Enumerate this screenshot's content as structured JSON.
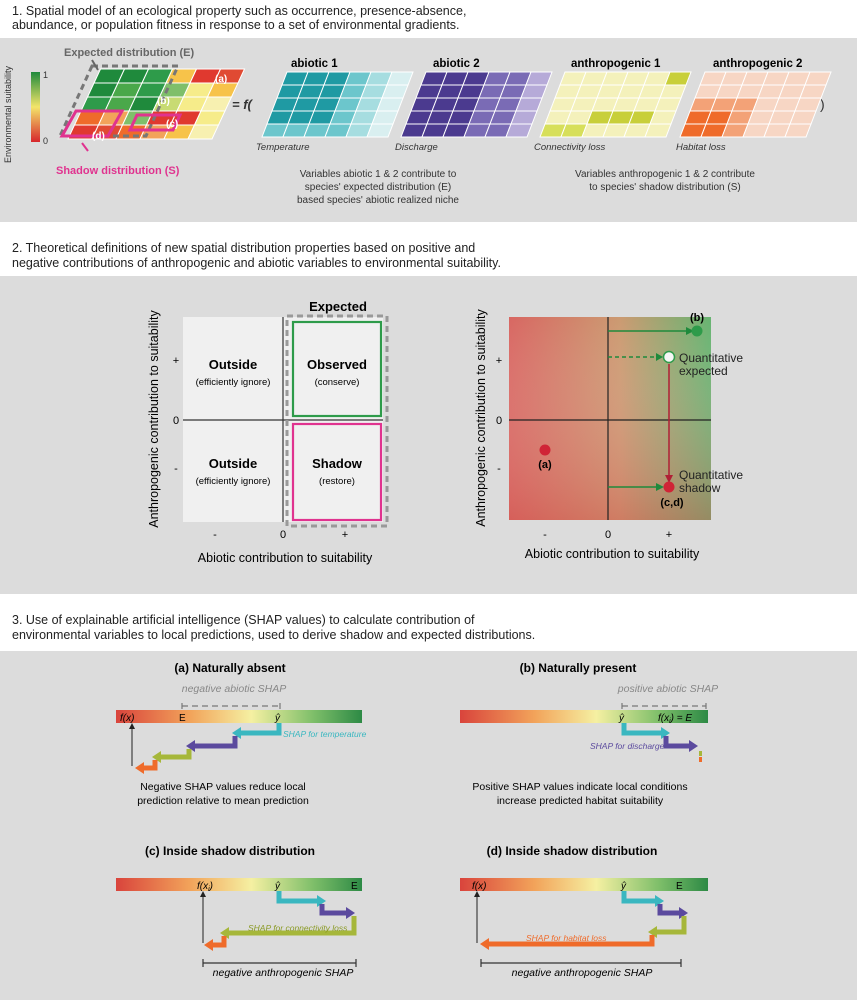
{
  "section1": {
    "heading_l1": "1. Spatial model of an ecological property such as occurrence, presence-absence,",
    "heading_l2": "abundance, or population fitness in response to a set of environmental gradients.",
    "colorbar_label": "Environmental suitability",
    "colorbar_max": "1",
    "colorbar_min": "0",
    "expected_label": "Expected distribution (E)",
    "shadow_label": "Shadow distribution (S)",
    "cell_a": "(a)",
    "cell_b": "(b)",
    "cell_c": "(c)",
    "cell_d": "(d)",
    "equals_f": "= f(",
    "close_paren": ")",
    "grids": [
      {
        "title": "abiotic 1",
        "caption": "Temperature"
      },
      {
        "title": "abiotic 2",
        "caption": "Discharge"
      },
      {
        "title": "anthropogenic 1",
        "caption": "Connectivity loss"
      },
      {
        "title": "anthropogenic 2",
        "caption": "Habitat loss"
      }
    ],
    "note_abiotic": [
      "Variables abiotic 1 & 2 contribute to",
      "species' expected distribution (E)",
      "based species' abiotic realized niche"
    ],
    "note_anthro": [
      "Variables anthropogenic 1 & 2 contribute",
      "to species' shadow distribution (S)"
    ]
  },
  "section2": {
    "heading_l1": "2. Theoretical definitions of new spatial distribution properties based on positive and",
    "heading_l2": "negative contributions of anthropogenic and abiotic variables to environmental suitability.",
    "y_axis_label": "Anthropogenic contribution to suitability",
    "x_axis_label": "Abiotic contribution to suitability",
    "tick_plus": "+",
    "tick_zero": "0",
    "tick_minus": "-",
    "expected_title": "Expected",
    "quadrants": {
      "outside_top": {
        "title": "Outside",
        "sub": "(efficiently ignore)"
      },
      "observed": {
        "title": "Observed",
        "sub": "(conserve)"
      },
      "outside_bottom": {
        "title": "Outside",
        "sub": "(efficiently ignore)"
      },
      "shadow": {
        "title": "Shadow",
        "sub": "(restore)"
      }
    },
    "points": {
      "a": "(a)",
      "b": "(b)",
      "cd": "(c,d)"
    },
    "q_expected": [
      "Quantitative",
      "expected"
    ],
    "q_shadow": [
      "Quantitative",
      "shadow"
    ]
  },
  "section3": {
    "heading_l1": "3. Use of explainable artificial intelligence (SHAP values) to calculate contribution of",
    "heading_l2": "environmental variables to local predictions, used to derive shadow and expected distributions.",
    "a": {
      "title": "(a) Naturally absent",
      "bracket": "negative abiotic SHAP",
      "fx": "f(x)",
      "E": "E",
      "yhat": "ŷ",
      "arrow_label": "SHAP for temperature",
      "note": [
        "Negative SHAP values reduce local",
        "prediction relative to mean prediction"
      ]
    },
    "b": {
      "title": "(b) Naturally present",
      "bracket": "positive abiotic SHAP",
      "yhat": "ŷ",
      "fx": "f(x",
      "fx_sub": "i",
      "fx_tail": ") = E",
      "arrow_label": "SHAP for discharge",
      "note": [
        "Positive SHAP values indicate local conditions",
        "increase predicted habitat suitability"
      ]
    },
    "c": {
      "title": "(c) Inside shadow distribution",
      "fx": "f(x",
      "fx_sub": "i",
      "fx_tail": ")",
      "yhat": "ŷ",
      "E": "E",
      "arrow_label": "SHAP for connectivity loss",
      "bracket": "negative anthropogenic SHAP"
    },
    "d": {
      "title": "(d) Inside shadow distribution",
      "fx": "f(x)",
      "yhat": "ŷ",
      "E": "E",
      "arrow_label": "SHAP for habitat loss",
      "bracket": "negative anthropogenic SHAP"
    }
  },
  "colors": {
    "panel_bg": "#dcdcdc",
    "green_box": "#2e9b4a",
    "magenta": "#e0338f",
    "teal": "#3ab7c0",
    "purple": "#5b4a9e",
    "olive": "#a6b73a",
    "orange": "#ef6b2a",
    "red_dot": "#d02436",
    "green_dot": "#2e9b4a"
  }
}
